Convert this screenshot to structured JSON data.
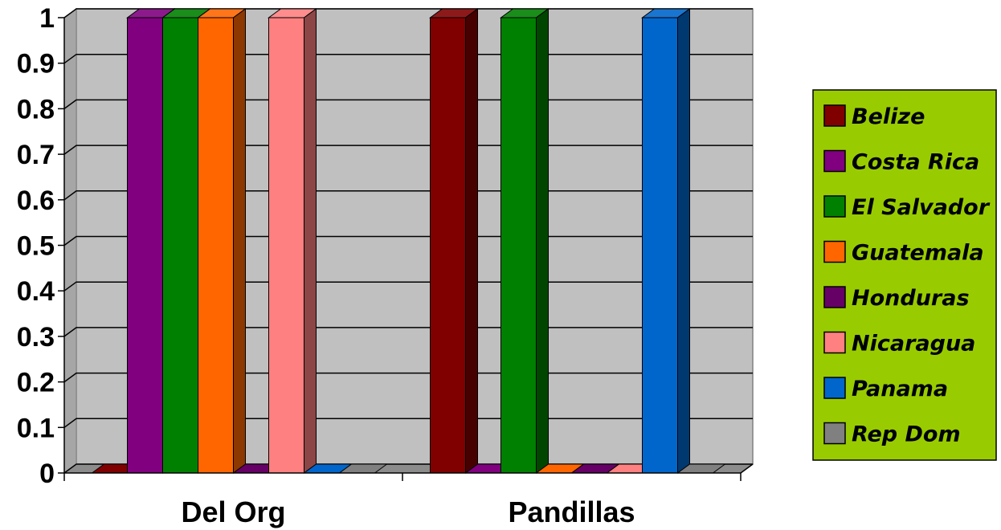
{
  "chart_data": {
    "type": "bar",
    "categories": [
      "Del Org",
      "Pandillas"
    ],
    "series": [
      {
        "name": "Belize",
        "values": [
          0,
          1
        ],
        "color": "#800000"
      },
      {
        "name": "Costa Rica",
        "values": [
          1,
          0
        ],
        "color": "#800080"
      },
      {
        "name": "El Salvador",
        "values": [
          1,
          1
        ],
        "color": "#008000"
      },
      {
        "name": "Guatemala",
        "values": [
          1,
          0
        ],
        "color": "#ff6600"
      },
      {
        "name": "Honduras",
        "values": [
          0,
          0
        ],
        "color": "#660066"
      },
      {
        "name": "Nicaragua",
        "values": [
          1,
          0
        ],
        "color": "#ff8080"
      },
      {
        "name": "Panama",
        "values": [
          0,
          1
        ],
        "color": "#0066cc"
      },
      {
        "name": "Rep Dom",
        "values": [
          0,
          0
        ],
        "color": "#808080"
      }
    ],
    "yticks": [
      "0",
      "0.1",
      "0.2",
      "0.3",
      "0.4",
      "0.5",
      "0.6",
      "0.7",
      "0.8",
      "0.9",
      "1"
    ],
    "ylim": [
      0,
      1
    ],
    "grid": true,
    "legend": "right",
    "plot_background": "#c0c0c0",
    "legend_background": "#99cc00"
  }
}
